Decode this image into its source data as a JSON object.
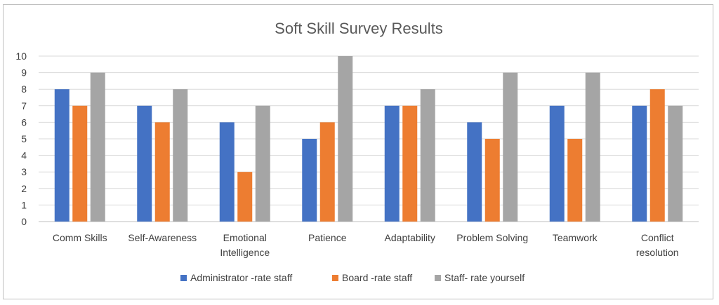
{
  "chart_data": {
    "type": "bar",
    "title": "Soft Skill Survey Results",
    "xlabel": "",
    "ylabel": "",
    "ylim": [
      0,
      10
    ],
    "yticks": [
      0,
      1,
      2,
      3,
      4,
      5,
      6,
      7,
      8,
      9,
      10
    ],
    "grid": true,
    "legend_position": "bottom",
    "categories": [
      [
        "Comm Skills"
      ],
      [
        "Self-Awareness"
      ],
      [
        "Emotional",
        "Intelligence"
      ],
      [
        "Patience"
      ],
      [
        "Adaptability"
      ],
      [
        "Problem Solving"
      ],
      [
        "Teamwork"
      ],
      [
        "Conflict",
        "resolution"
      ]
    ],
    "series": [
      {
        "name": "Administrator -rate staff",
        "color": "#4472c4",
        "values": [
          8,
          7,
          6,
          5,
          7,
          6,
          7,
          7
        ]
      },
      {
        "name": "Board -rate staff",
        "color": "#ed7d31",
        "values": [
          7,
          6,
          3,
          6,
          7,
          5,
          5,
          8
        ]
      },
      {
        "name": "Staff- rate yourself",
        "color": "#a5a5a5",
        "values": [
          9,
          8,
          7,
          10,
          8,
          9,
          9,
          7
        ]
      }
    ]
  }
}
